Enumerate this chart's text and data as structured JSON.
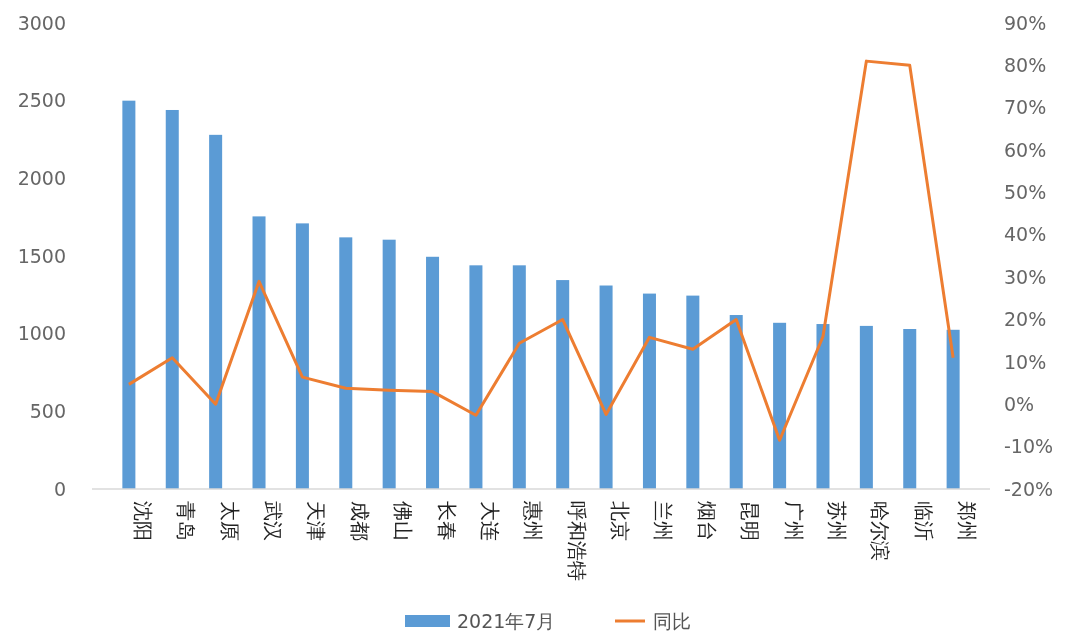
{
  "chart_data": {
    "type": "bar",
    "categories": [
      "沈阳",
      "青岛",
      "太原",
      "武汉",
      "天津",
      "成都",
      "佛山",
      "长春",
      "大连",
      "惠州",
      "呼和浩特",
      "北京",
      "兰州",
      "烟台",
      "昆明",
      "广州",
      "苏州",
      "哈尔滨",
      "临沂",
      "郑州"
    ],
    "series": [
      {
        "name": "2021年7月",
        "color": "#5b9bd5",
        "values": [
          2500,
          2440,
          2280,
          1755,
          1710,
          1620,
          1605,
          1495,
          1440,
          1440,
          1345,
          1310,
          1258,
          1245,
          1120,
          1070,
          1062,
          1050,
          1030,
          1025
        ]
      },
      {
        "name": "同比",
        "type": "line",
        "axis": "y2",
        "color": "#ed7d31",
        "values": [
          4.7,
          11,
          0,
          29,
          6.4,
          3.8,
          3.3,
          3,
          -2.6,
          14.4,
          20,
          -2.4,
          15.8,
          13,
          20,
          -8.5,
          16,
          81,
          80,
          11
        ]
      }
    ],
    "ylim": [
      0,
      3000
    ],
    "yticks": [
      0,
      500,
      1000,
      1500,
      2000,
      2500,
      3000
    ],
    "y2lim": [
      -20,
      90
    ],
    "y2ticks": [
      {
        "value": -20,
        "label": "-20%"
      },
      {
        "value": -10,
        "label": "-10%"
      },
      {
        "value": 0,
        "label": "0%"
      },
      {
        "value": 10,
        "label": "10%"
      },
      {
        "value": 20,
        "label": "20%"
      },
      {
        "value": 30,
        "label": "30%"
      },
      {
        "value": 40,
        "label": "40%"
      },
      {
        "value": 50,
        "label": "50%"
      },
      {
        "value": 60,
        "label": "60%"
      },
      {
        "value": 70,
        "label": "70%"
      },
      {
        "value": 80,
        "label": "80%"
      },
      {
        "value": 90,
        "label": "90%"
      }
    ],
    "legend": "bottom",
    "grid": false,
    "marker": "none",
    "line_style": "solid"
  }
}
